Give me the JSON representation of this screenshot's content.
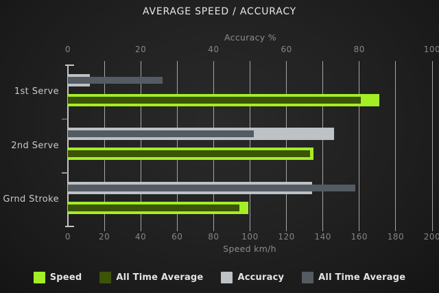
{
  "title": "AVERAGE SPEED / ACCURACY",
  "chart_data": {
    "type": "bar",
    "orientation": "horizontal",
    "title": "AVERAGE SPEED / ACCURACY",
    "categories": [
      "1st Serve",
      "2nd Serve",
      "Grnd Stroke"
    ],
    "axes": {
      "top": {
        "label": "Accuracy %",
        "min": 0,
        "max": 100,
        "ticks": [
          0,
          20,
          40,
          60,
          80,
          100
        ]
      },
      "bottom": {
        "label": "Speed km/h",
        "min": 0,
        "max": 200,
        "ticks": [
          0,
          20,
          40,
          60,
          80,
          100,
          120,
          140,
          160,
          180,
          200
        ]
      }
    },
    "grid": "vertical-on",
    "series": [
      {
        "name": "Speed",
        "axis": "bottom",
        "role": "current",
        "color": "#a4ee26",
        "values": [
          171,
          135,
          99
        ]
      },
      {
        "name": "All Time Average",
        "axis": "bottom",
        "role": "average",
        "color": "#3c5407",
        "values": [
          161,
          133,
          94
        ]
      },
      {
        "name": "Accuracy",
        "axis": "top",
        "role": "current",
        "color": "#bdc2c6",
        "values": [
          6,
          73,
          67
        ]
      },
      {
        "name": "All Time Average",
        "axis": "top",
        "role": "average",
        "color": "#545b62",
        "values": [
          26,
          51,
          79
        ]
      }
    ],
    "legend": {
      "position": "bottom-center",
      "items": [
        {
          "label": "Speed",
          "color": "#a4ee26"
        },
        {
          "label": "All Time Average",
          "color": "#3c5407"
        },
        {
          "label": "Accuracy",
          "color": "#bdc2c6"
        },
        {
          "label": "All Time Average",
          "color": "#545b62"
        }
      ]
    },
    "colors": {
      "background": "#202020",
      "gridline": "#bfbfbf",
      "title_text": "#e8e8e8",
      "axis_text": "#8d8d8d",
      "tick_text": "#868686",
      "category_text": "#c9c9c9",
      "legend_text": "#e4e4e4"
    }
  }
}
